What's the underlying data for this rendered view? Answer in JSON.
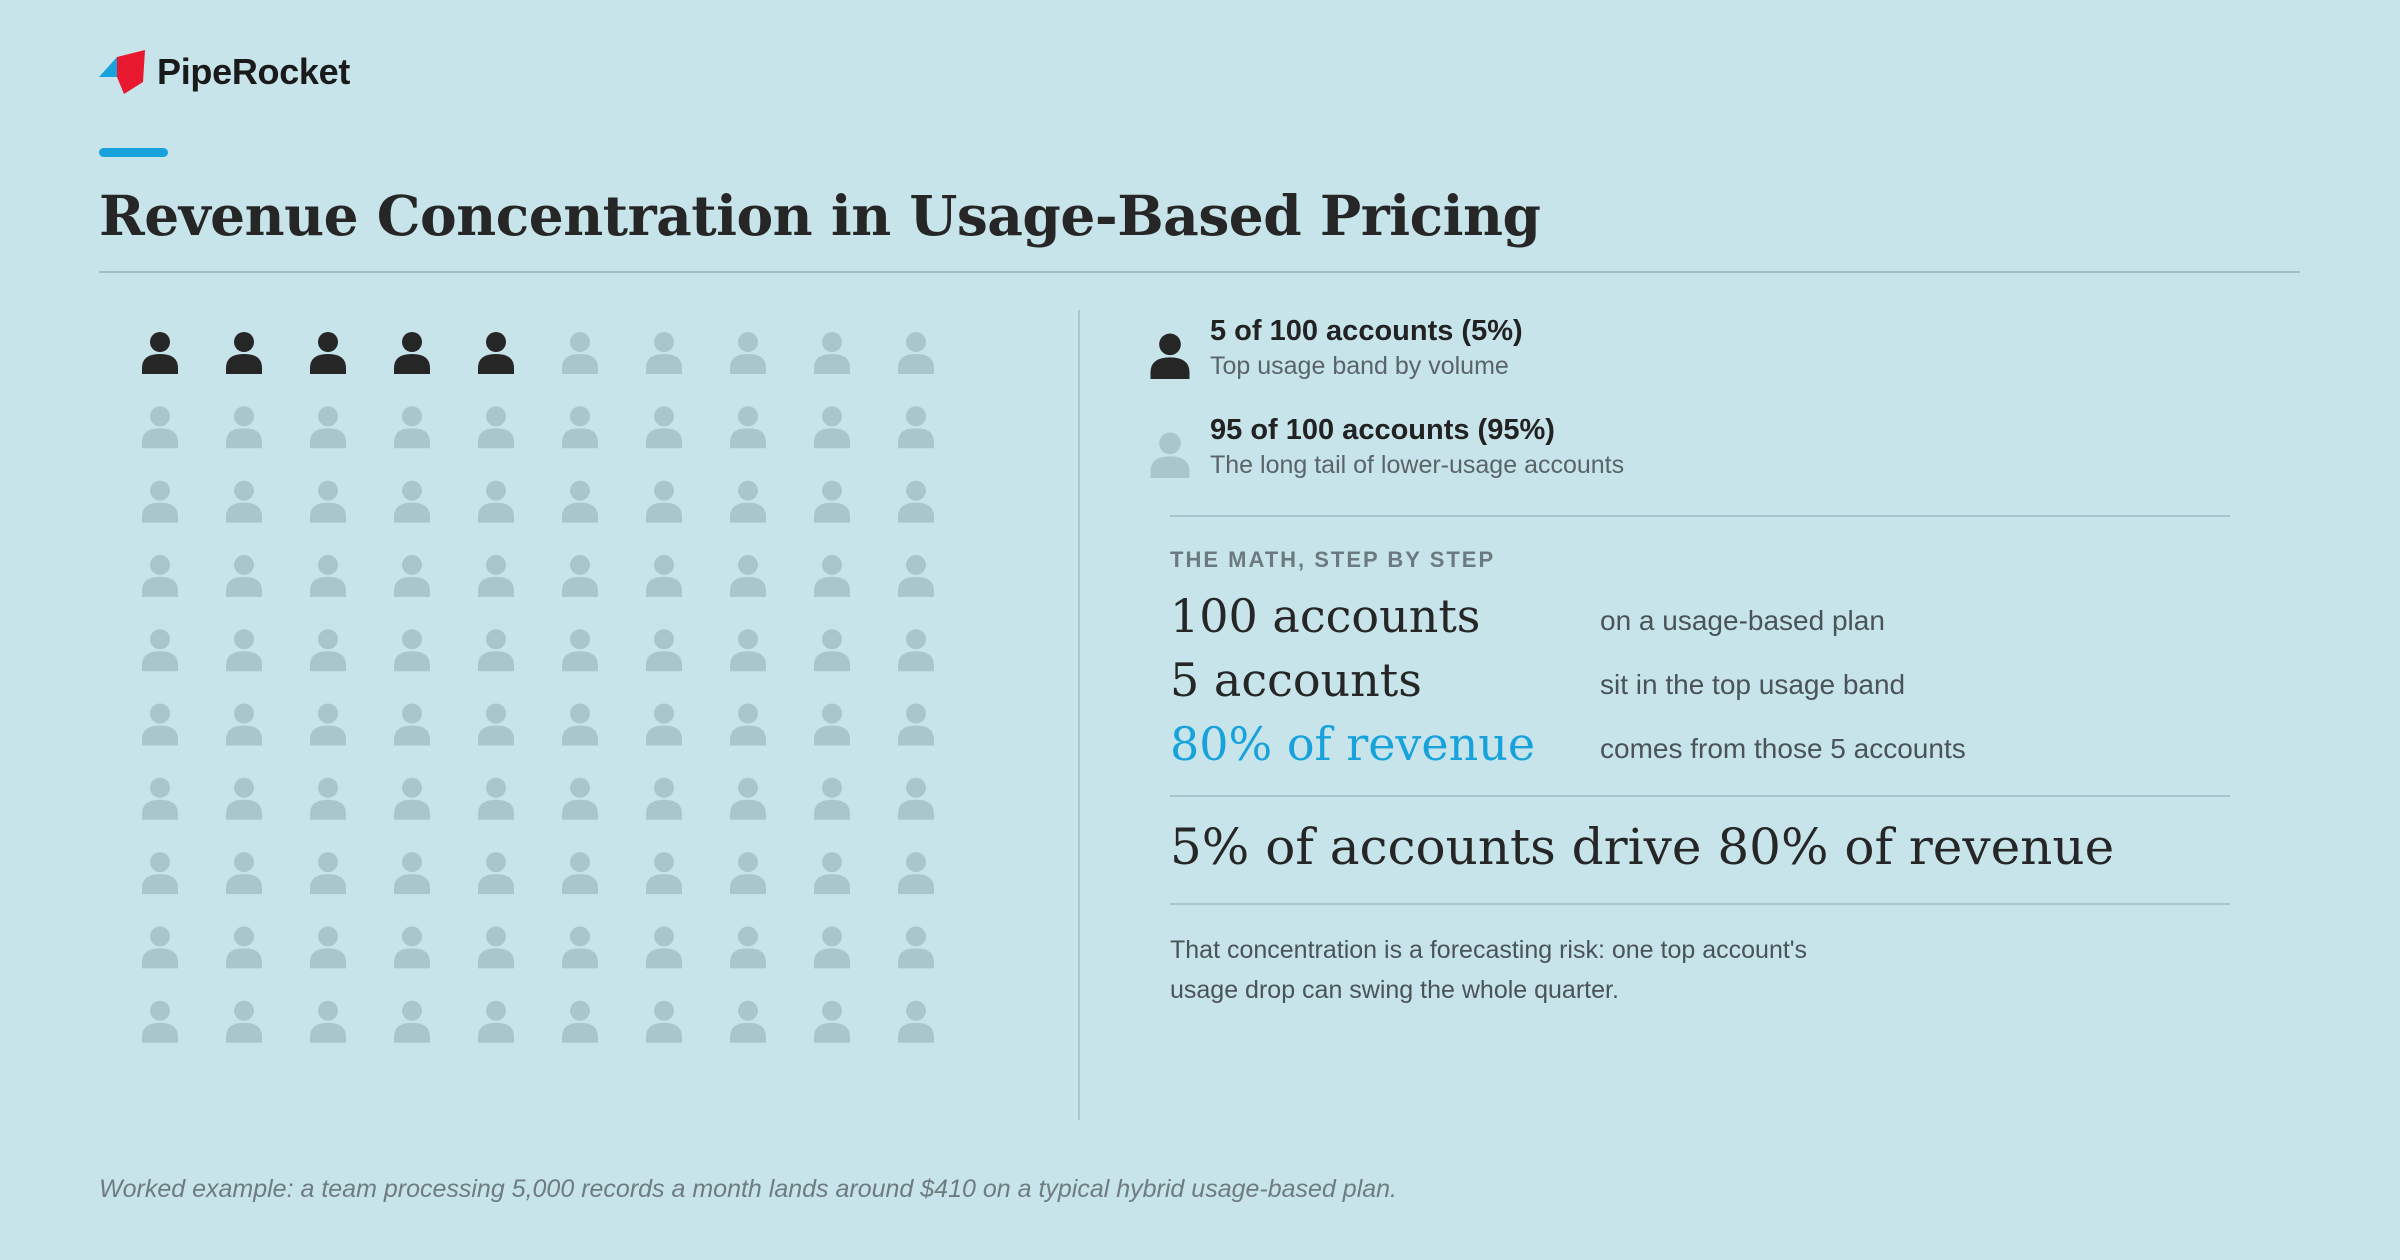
{
  "brand": {
    "name": "PipeRocket",
    "logo_icon": "piperocket-logo-icon",
    "colors": {
      "blue": "#17a2dc",
      "red": "#e8182e"
    }
  },
  "title": "Revenue Concentration in Usage-Based Pricing",
  "colors": {
    "highlight": "#262626",
    "muted": "#a9c6cd",
    "accent": "#17a2dc"
  },
  "chart_data": {
    "type": "waffle",
    "rows": 10,
    "columns": 10,
    "total": 100,
    "icon": "person-icon",
    "series": [
      {
        "name": "5 of 100 accounts (5%)",
        "value": 5,
        "color": "#262626"
      },
      {
        "name": "95 of 100 accounts (95%)",
        "value": 95,
        "color": "#a9c6cd"
      }
    ]
  },
  "legend": [
    {
      "title": "5 of 100 accounts (5%)",
      "subtitle": "Top usage band by volume",
      "icon": "person-icon"
    },
    {
      "title": "95 of 100 accounts (95%)",
      "subtitle": "The long tail of lower-usage accounts",
      "icon": "person-icon"
    }
  ],
  "math": {
    "label": "THE MATH, STEP BY STEP",
    "rows": [
      {
        "value": "100 accounts",
        "desc": "on a usage-based plan"
      },
      {
        "value": "5 accounts",
        "desc": "sit in the top usage band"
      },
      {
        "value": "80% of revenue",
        "desc": "comes from those 5 accounts"
      }
    ]
  },
  "conclusion": "5% of accounts drive 80% of revenue",
  "note": "That concentration is a forecasting risk: one top account's usage drop can swing the whole quarter.",
  "footnote": "Worked example: a team processing 5,000 records a month lands around $410 on a typical hybrid usage-based plan."
}
